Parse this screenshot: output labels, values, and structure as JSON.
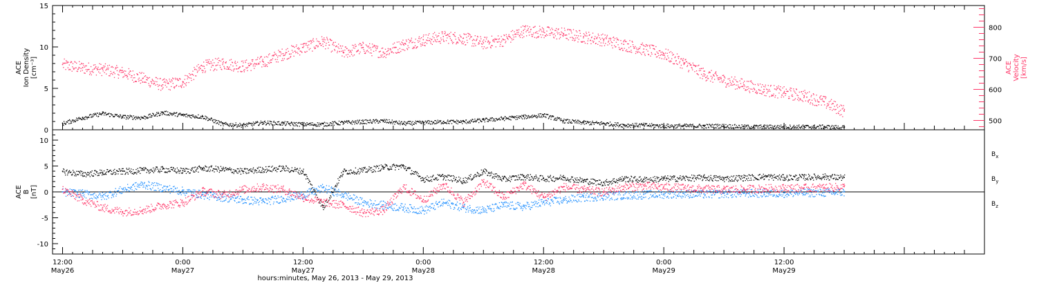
{
  "chart_data": [
    {
      "type": "scatter",
      "panel": "top",
      "ylabel_left": [
        "ACE",
        "Ion Density",
        "[cm⁻³]"
      ],
      "ylabel_right": [
        "ACE",
        "Velocity",
        "[km/s]"
      ],
      "ylim_left": [
        0,
        15
      ],
      "ylim_right": [
        470,
        870
      ],
      "yticks_left": [
        "0",
        "5",
        "10",
        "15"
      ],
      "yticks_right": [
        "500",
        "600",
        "700",
        "800"
      ],
      "series": [
        {
          "axis": "left",
          "color": "#000000",
          "x": [
            0,
            2,
            4,
            6,
            8,
            10,
            12,
            14,
            16,
            18,
            20,
            22,
            24,
            26,
            28,
            30,
            32,
            34,
            36,
            38,
            40,
            42,
            44,
            46,
            48,
            50,
            52,
            54,
            56,
            58,
            60,
            62,
            64,
            66,
            68,
            70,
            72,
            74,
            76,
            78
          ],
          "y": [
            0.8,
            1.5,
            2.0,
            1.6,
            1.5,
            2.1,
            1.8,
            1.6,
            0.7,
            0.6,
            0.9,
            0.8,
            0.7,
            0.7,
            0.9,
            1.0,
            1.1,
            0.8,
            0.9,
            1.0,
            1.0,
            1.2,
            1.4,
            1.6,
            1.8,
            1.1,
            0.9,
            0.8,
            0.6,
            0.6,
            0.5,
            0.5,
            0.5,
            0.5,
            0.4,
            0.4,
            0.4,
            0.4,
            0.4,
            0.3
          ]
        },
        {
          "axis": "right",
          "color": "#ff3366",
          "x": [
            0,
            2,
            4,
            6,
            8,
            10,
            12,
            14,
            16,
            18,
            20,
            22,
            24,
            26,
            28,
            30,
            32,
            34,
            36,
            38,
            40,
            42,
            44,
            46,
            48,
            50,
            52,
            54,
            56,
            58,
            60,
            62,
            64,
            66,
            68,
            70,
            72,
            74,
            76,
            78
          ],
          "y": [
            680,
            670,
            665,
            655,
            635,
            615,
            625,
            675,
            685,
            675,
            690,
            715,
            735,
            755,
            720,
            735,
            720,
            745,
            760,
            770,
            765,
            750,
            760,
            790,
            785,
            780,
            770,
            760,
            745,
            730,
            715,
            685,
            650,
            630,
            615,
            600,
            590,
            580,
            560,
            530
          ]
        }
      ]
    },
    {
      "type": "scatter",
      "panel": "bottom",
      "ylabel_left": [
        "ACE",
        "B",
        "[nT]"
      ],
      "ylim": [
        -12,
        12
      ],
      "yticks": [
        "-10",
        "-5",
        "0",
        "5",
        "10"
      ],
      "legend": [
        {
          "label": "B",
          "sub": "x",
          "color": "#000000"
        },
        {
          "label": "B",
          "sub": "y",
          "color": "#1a8cff"
        },
        {
          "label": "B",
          "sub": "z",
          "color": "#ff3366"
        }
      ],
      "series": [
        {
          "name": "Bx",
          "color": "#000000",
          "x": [
            0,
            2,
            4,
            6,
            8,
            10,
            12,
            14,
            16,
            18,
            20,
            22,
            24,
            26,
            28,
            30,
            32,
            34,
            36,
            38,
            40,
            42,
            44,
            46,
            48,
            50,
            52,
            54,
            56,
            58,
            60,
            62,
            64,
            66,
            68,
            70,
            72,
            74,
            76,
            78
          ],
          "y": [
            4.0,
            3.5,
            3.8,
            4.0,
            4.2,
            4.4,
            4.1,
            4.6,
            4.4,
            4.0,
            4.4,
            4.6,
            4.0,
            -3.0,
            4.0,
            4.2,
            4.8,
            5.0,
            2.5,
            3.0,
            2.2,
            4.0,
            2.5,
            3.0,
            2.6,
            2.8,
            2.2,
            1.8,
            2.6,
            2.4,
            2.6,
            2.7,
            2.8,
            2.6,
            2.8,
            3.0,
            2.8,
            2.9,
            3.0,
            2.8
          ]
        },
        {
          "name": "By",
          "color": "#1a8cff",
          "x": [
            0,
            2,
            4,
            6,
            8,
            10,
            12,
            14,
            16,
            18,
            20,
            22,
            24,
            26,
            28,
            30,
            32,
            34,
            36,
            38,
            40,
            42,
            44,
            46,
            48,
            50,
            52,
            54,
            56,
            58,
            60,
            62,
            64,
            66,
            68,
            70,
            72,
            74,
            76,
            78
          ],
          "y": [
            0.0,
            -0.3,
            -0.8,
            0.5,
            1.5,
            0.8,
            0.2,
            -0.5,
            -1.0,
            -1.5,
            -1.8,
            -1.2,
            -0.5,
            0.8,
            -0.5,
            -2.0,
            -2.5,
            -3.0,
            -3.5,
            -2.0,
            -3.0,
            -3.5,
            -2.5,
            -2.8,
            -2.0,
            -1.5,
            -1.0,
            -0.8,
            -0.6,
            -0.5,
            -0.4,
            -0.3,
            -0.4,
            -0.3,
            -0.2,
            -0.2,
            -0.2,
            -0.1,
            -0.1,
            0.0
          ]
        },
        {
          "name": "Bz",
          "color": "#ff3366",
          "x": [
            0,
            2,
            4,
            6,
            8,
            10,
            12,
            14,
            16,
            18,
            20,
            22,
            24,
            26,
            28,
            30,
            32,
            34,
            36,
            38,
            40,
            42,
            44,
            46,
            48,
            50,
            52,
            54,
            56,
            58,
            60,
            62,
            64,
            66,
            68,
            70,
            72,
            74,
            76,
            78
          ],
          "y": [
            0.5,
            -1.5,
            -3.0,
            -3.8,
            -3.5,
            -2.5,
            -2.0,
            0.2,
            -0.5,
            0.5,
            1.0,
            0.5,
            -1.0,
            -2.0,
            -2.5,
            -4.0,
            -3.5,
            1.0,
            -1.5,
            1.5,
            -2.0,
            2.0,
            -1.0,
            1.5,
            -1.0,
            1.0,
            0.5,
            0.0,
            1.0,
            1.2,
            1.0,
            0.8,
            0.6,
            0.5,
            0.6,
            0.7,
            0.8,
            0.8,
            0.9,
            1.0
          ]
        }
      ]
    }
  ],
  "time_axis": {
    "hours_per_unit": 1,
    "start_label_hour": 0,
    "range": [
      -1,
      92
    ],
    "major_labels": [
      {
        "h": 0,
        "time": "12:00",
        "date": "May26"
      },
      {
        "h": 12,
        "time": "0:00",
        "date": "May27"
      },
      {
        "h": 24,
        "time": "12:00",
        "date": "May27"
      },
      {
        "h": 36,
        "time": "0:00",
        "date": "May28"
      },
      {
        "h": 48,
        "time": "12:00",
        "date": "May28"
      },
      {
        "h": 60,
        "time": "0:00",
        "date": "May29"
      },
      {
        "h": 72,
        "time": "12:00",
        "date": "May29"
      }
    ],
    "xlabel": "hours:minutes, May 26, 2013 - May 29, 2013"
  },
  "colors": {
    "density": "#000000",
    "velocity": "#ff3366",
    "bx": "#000000",
    "by": "#1a8cff",
    "bz": "#ff3366"
  }
}
